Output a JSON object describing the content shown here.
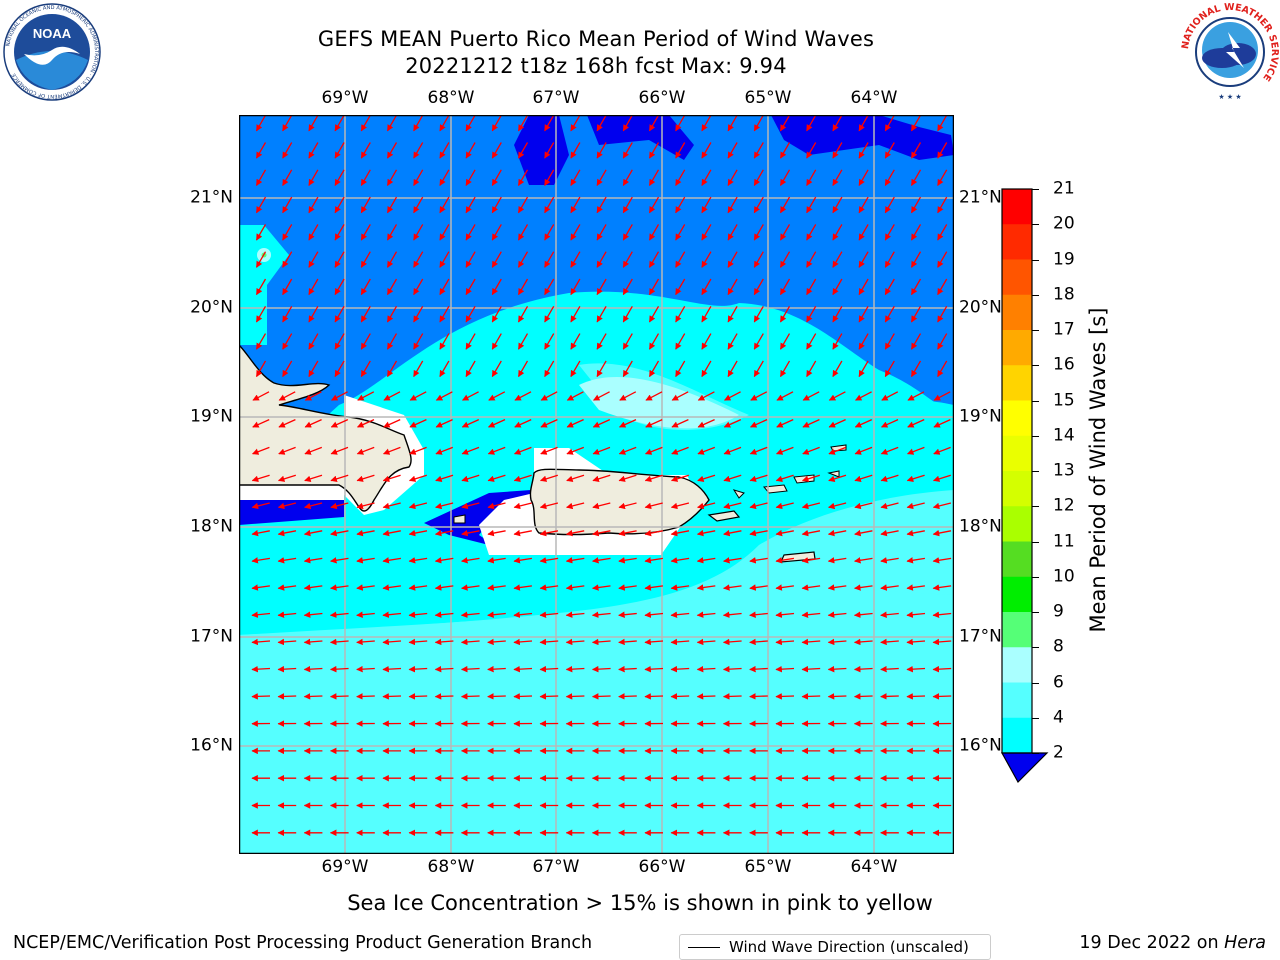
{
  "title": {
    "line1": "GEFS MEAN Puerto Rico Mean Period of Wind Waves",
    "line2": "20221212 t18z 168h fcst   Max: 9.94"
  },
  "logos": {
    "left": {
      "name": "NOAA",
      "ring_text": "NATIONAL OCEANIC AND ATMOSPHERIC ADMINISTRATION · U.S. DEPARTMENT OF COMMERCE"
    },
    "right": {
      "ring_text": "NATIONAL WEATHER SERVICE"
    }
  },
  "map": {
    "lon_labels": [
      "69°W",
      "68°W",
      "67°W",
      "66°W",
      "65°W",
      "64°W"
    ],
    "lat_labels": [
      "21°N",
      "20°N",
      "19°N",
      "18°N",
      "17°N",
      "16°N"
    ],
    "land_color": "#efedde",
    "arrow_color": "#ff0000",
    "legend_label": "Wind Wave Direction (unscaled)"
  },
  "colorbar": {
    "label": "Mean Period of Wind Waves [s]",
    "ticks": [
      "21",
      "20",
      "19",
      "18",
      "17",
      "16",
      "15",
      "14",
      "13",
      "12",
      "11",
      "10",
      "9",
      "8",
      "6",
      "4",
      "2"
    ],
    "colors": [
      "#ff0000",
      "#ff2a00",
      "#ff5500",
      "#ff8000",
      "#ffaa00",
      "#ffd400",
      "#ffff00",
      "#eaff00",
      "#d4ff00",
      "#aaff00",
      "#55dd22",
      "#00ee00",
      "#55ff77",
      "#aaffff",
      "#55ffff",
      "#00ffff",
      "#0080ff",
      "#0000ee"
    ]
  },
  "subtitle": "Sea Ice Concentration > 15% is shown in pink to yellow",
  "footer": {
    "left": "NCEP/EMC/Verification Post Processing Product Generation Branch",
    "right_prefix": "19 Dec 2022 on ",
    "right_machine": "Hera"
  }
}
